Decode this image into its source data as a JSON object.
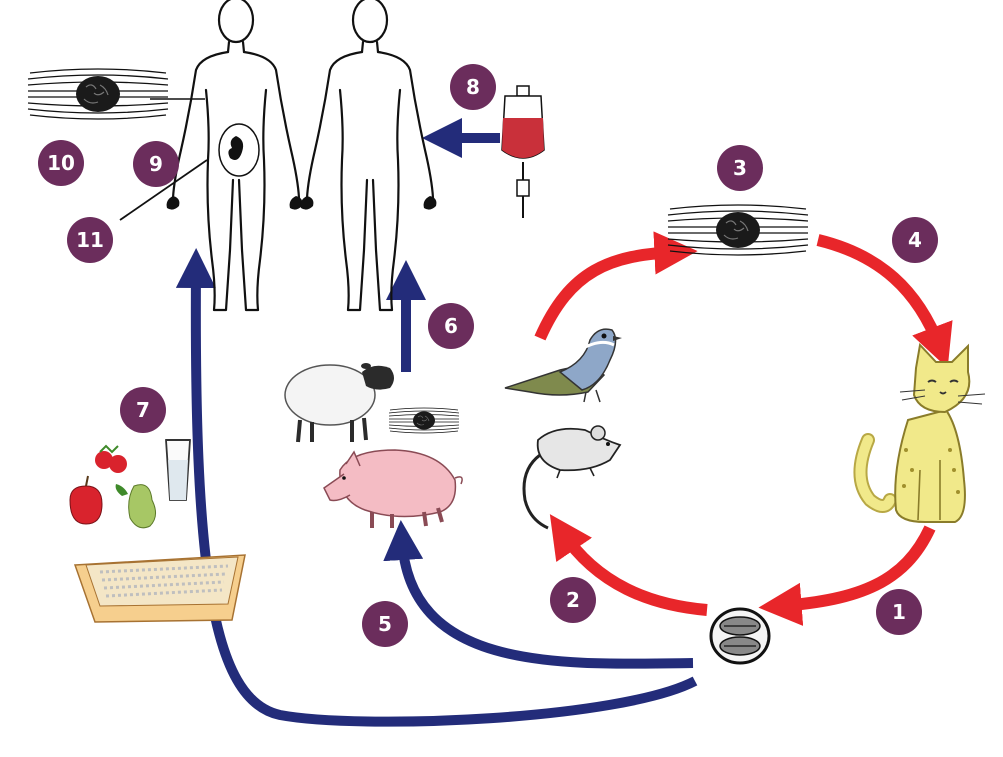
{
  "colors": {
    "badge": "#6b2d5c",
    "red_arrow": "#e8262a",
    "blue_arrow": "#232c7a",
    "cat": "#f1e98a",
    "pig": "#f4bcc4",
    "blood": "#c9303a"
  },
  "badges": [
    {
      "label": "1"
    },
    {
      "label": "2"
    },
    {
      "label": "3"
    },
    {
      "label": "4"
    },
    {
      "label": "5"
    },
    {
      "label": "6"
    },
    {
      "label": "7"
    },
    {
      "label": "8"
    },
    {
      "label": "9"
    },
    {
      "label": "10"
    },
    {
      "label": "11"
    }
  ],
  "icons": [
    "human-left-icon",
    "human-right-icon",
    "muscle-cyst-icon",
    "blood-bag-icon",
    "cat-icon",
    "oocyst-icon",
    "bird-icon",
    "mouse-icon",
    "sheep-icon",
    "pig-icon",
    "fruit-icon",
    "water-glass-icon",
    "litter-box-icon",
    "fetus-icon"
  ]
}
